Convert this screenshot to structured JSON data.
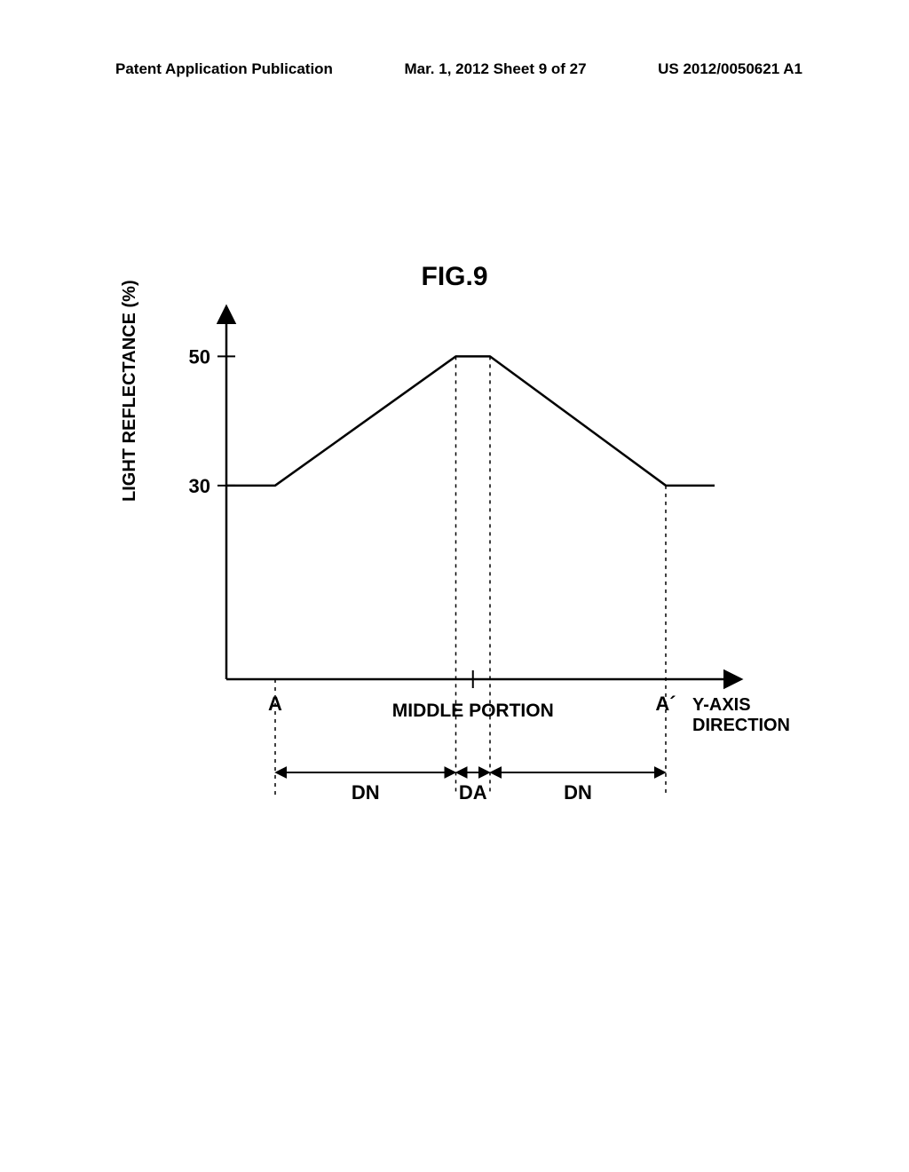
{
  "header": {
    "left": "Patent Application Publication",
    "center": "Mar. 1, 2012  Sheet 9 of 27",
    "right": "US 2012/0050621 A1"
  },
  "figure": {
    "title": "FIG.9",
    "y_axis_label": "LIGHT REFLECTANCE (%)",
    "x_axis_label_line1": "Y-AXIS",
    "x_axis_label_line2": "DIRECTION",
    "y_ticks": [
      {
        "value": 50,
        "label": "50"
      },
      {
        "value": 30,
        "label": "30"
      }
    ],
    "y_range": [
      0,
      55
    ],
    "x_range": [
      0,
      100
    ],
    "curve_points": [
      {
        "x": 0,
        "y": 30
      },
      {
        "x": 10,
        "y": 30
      },
      {
        "x": 47,
        "y": 50
      },
      {
        "x": 54,
        "y": 50
      },
      {
        "x": 90,
        "y": 30
      },
      {
        "x": 100,
        "y": 30
      }
    ],
    "regions": {
      "left": {
        "label": "A",
        "x": 10
      },
      "right": {
        "label": "A´",
        "x": 90
      },
      "middle_label": "MIDDLE PORTION",
      "center_left": {
        "x": 47
      },
      "center_right": {
        "x": 54
      },
      "dn_label": "DN",
      "da_label": "DA"
    },
    "colors": {
      "axis": "#000000",
      "curve": "#000000",
      "dashed": "#000000",
      "background": "#ffffff"
    },
    "stroke_widths": {
      "axis": 2.5,
      "curve": 2.5,
      "tick": 2,
      "dashed": 1.5
    }
  }
}
